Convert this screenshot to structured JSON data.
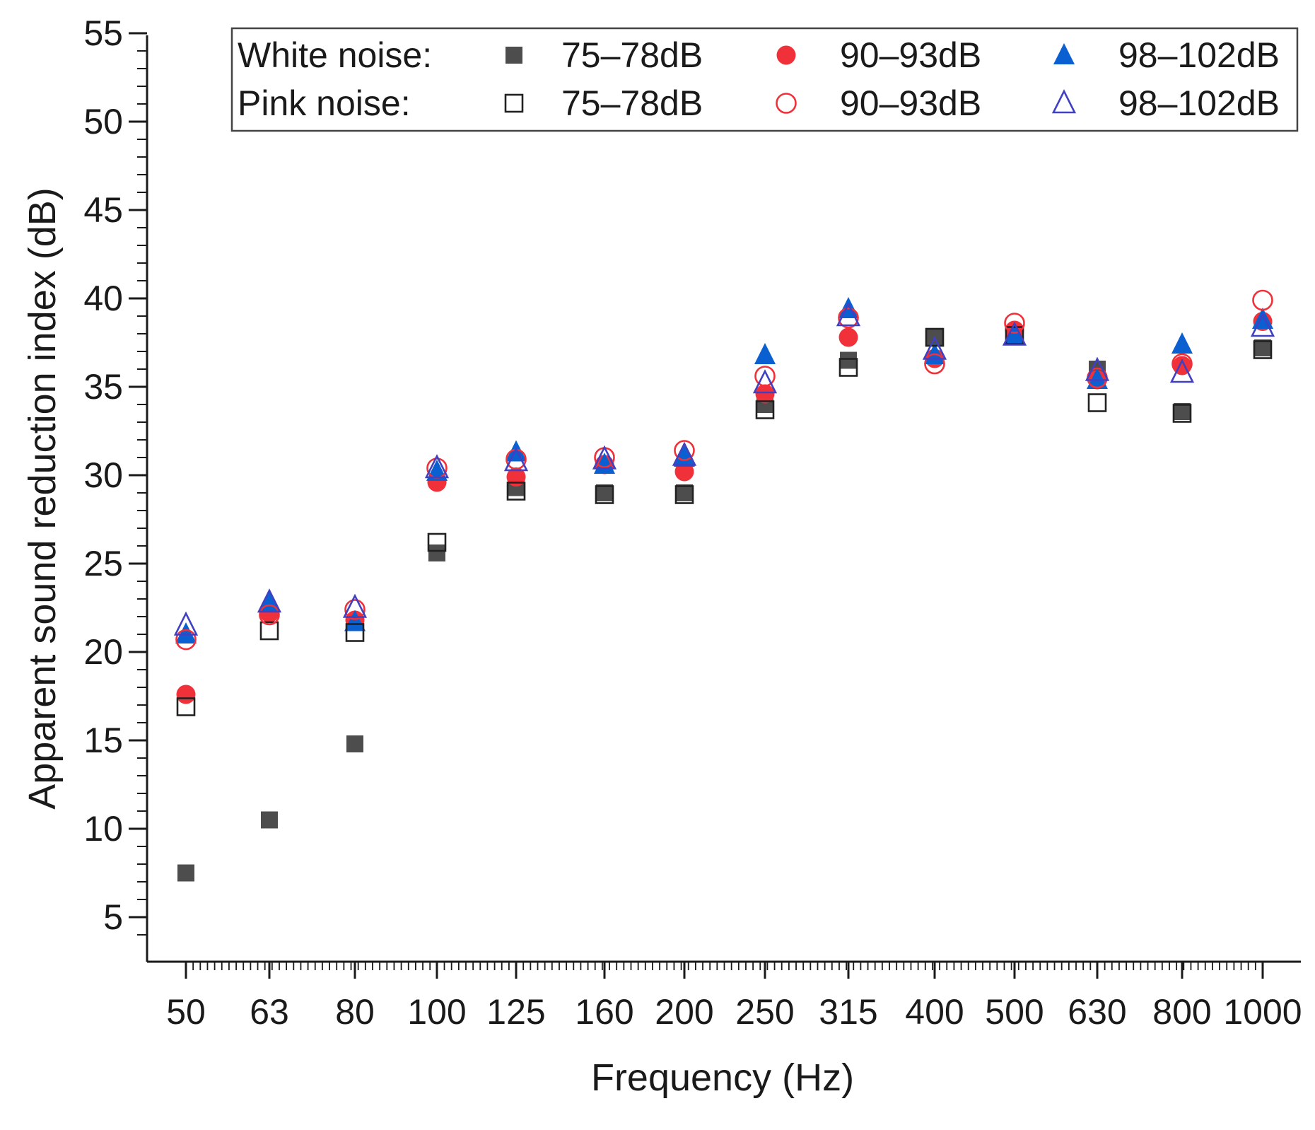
{
  "chart_data": {
    "type": "scatter",
    "title": "",
    "xlabel": "Frequency (Hz)",
    "ylabel": "Apparent sound reduction index (dB)",
    "x_scale": "categorical",
    "categories": [
      "50",
      "63",
      "80",
      "100",
      "125",
      "160",
      "200",
      "250",
      "315",
      "400",
      "500",
      "630",
      "800",
      "1000"
    ],
    "ylim": [
      3,
      55
    ],
    "yticks": [
      5,
      10,
      15,
      20,
      25,
      30,
      35,
      40,
      45,
      50,
      55
    ],
    "grid": false,
    "legend": {
      "placement": "top-right",
      "row_labels": [
        "White noise:",
        "Pink noise:"
      ],
      "level_labels": [
        "75–78dB",
        "90–93dB",
        "98–102dB"
      ]
    },
    "series": [
      {
        "name": "White noise 75–78dB",
        "marker": "square",
        "filled": true,
        "color": "#4d4d4d",
        "values": [
          7.5,
          10.5,
          14.8,
          25.6,
          29.3,
          29.0,
          29.0,
          34.0,
          36.5,
          37.8,
          38.0,
          36.0,
          33.6,
          37.2
        ]
      },
      {
        "name": "White noise 90–93dB",
        "marker": "circle",
        "filled": true,
        "color": "#f0313a",
        "values": [
          17.6,
          22.2,
          21.8,
          29.6,
          29.9,
          30.6,
          30.2,
          34.6,
          37.8,
          36.6,
          38.2,
          35.4,
          36.2,
          38.7
        ]
      },
      {
        "name": "White noise 98–102dB",
        "marker": "triangle",
        "filled": true,
        "color": "#0a60d0",
        "values": [
          21.0,
          22.8,
          21.7,
          30.2,
          31.3,
          30.6,
          31.0,
          36.8,
          39.4,
          36.8,
          37.9,
          35.4,
          37.4,
          38.8
        ]
      },
      {
        "name": "Pink noise 75–78dB",
        "marker": "square",
        "filled": false,
        "color": "#222222",
        "values": [
          16.9,
          21.2,
          21.1,
          26.2,
          29.1,
          28.9,
          28.9,
          33.7,
          36.1,
          37.8,
          37.9,
          34.1,
          33.5,
          37.1
        ]
      },
      {
        "name": "Pink noise 90–93dB",
        "marker": "circle",
        "filled": false,
        "color": "#f0313a",
        "values": [
          20.7,
          22.1,
          22.4,
          30.4,
          30.9,
          31.0,
          31.4,
          35.6,
          38.9,
          36.3,
          38.6,
          35.5,
          36.3,
          39.9
        ]
      },
      {
        "name": "Pink noise 98–102dB",
        "marker": "triangle",
        "filled": false,
        "color": "#4040c0",
        "values": [
          21.5,
          22.8,
          22.5,
          30.4,
          30.8,
          30.9,
          31.1,
          35.2,
          39.0,
          37.1,
          37.9,
          35.9,
          35.8,
          38.4
        ]
      }
    ]
  }
}
